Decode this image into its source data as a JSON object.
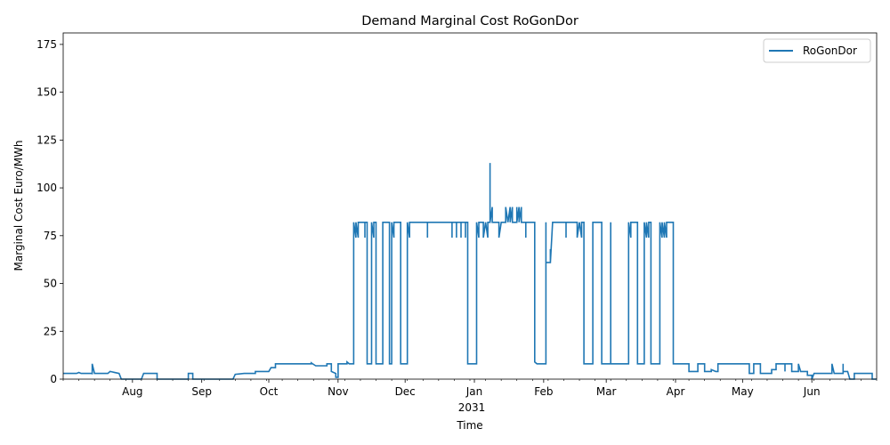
{
  "chart_data": {
    "type": "line",
    "title": "Demand Marginal Cost RoGonDor",
    "xlabel": "Time",
    "ylabel": "Marginal Cost Euro/MWh",
    "ylim": [
      0,
      181
    ],
    "xlim": [
      "2030-07-01",
      "2031-06-30"
    ],
    "yticks": [
      0,
      25,
      50,
      75,
      100,
      125,
      150,
      175
    ],
    "xticks": [
      {
        "date": "2030-08-01",
        "label": "Aug"
      },
      {
        "date": "2030-09-01",
        "label": "Sep"
      },
      {
        "date": "2030-10-01",
        "label": "Oct"
      },
      {
        "date": "2030-11-01",
        "label": "Nov"
      },
      {
        "date": "2030-12-01",
        "label": "Dec"
      },
      {
        "date": "2031-01-01",
        "label": "Jan"
      },
      {
        "date": "2031-02-01",
        "label": "Feb"
      },
      {
        "date": "2031-03-01",
        "label": "Mar"
      },
      {
        "date": "2031-04-01",
        "label": "Apr"
      },
      {
        "date": "2031-05-01",
        "label": "May"
      },
      {
        "date": "2031-06-01",
        "label": "Jun"
      }
    ],
    "year_label": "2031",
    "grid": false,
    "legend": "top-right",
    "series": [
      {
        "name": "RoGonDor",
        "color": "#1f77b4",
        "points": [
          [
            "2030-07-01",
            3
          ],
          [
            "2030-07-07",
            3
          ],
          [
            "2030-07-08",
            3.5
          ],
          [
            "2030-07-09",
            3
          ],
          [
            "2030-07-14",
            3
          ],
          [
            "2030-07-14",
            2.5
          ],
          [
            "2030-07-14",
            8
          ],
          [
            "2030-07-15",
            3
          ],
          [
            "2030-07-21",
            3
          ],
          [
            "2030-07-22",
            4
          ],
          [
            "2030-07-26",
            3
          ],
          [
            "2030-07-27",
            0
          ],
          [
            "2030-08-05",
            0
          ],
          [
            "2030-08-06",
            3
          ],
          [
            "2030-08-12",
            3
          ],
          [
            "2030-08-12",
            0
          ],
          [
            "2030-08-26",
            0
          ],
          [
            "2030-08-26",
            3
          ],
          [
            "2030-08-28",
            3
          ],
          [
            "2030-08-28",
            0
          ],
          [
            "2030-09-15",
            0
          ],
          [
            "2030-09-16",
            2.5
          ],
          [
            "2030-09-20",
            3
          ],
          [
            "2030-09-25",
            3
          ],
          [
            "2030-09-25",
            4
          ],
          [
            "2030-10-01",
            4
          ],
          [
            "2030-10-02",
            6
          ],
          [
            "2030-10-04",
            6
          ],
          [
            "2030-10-04",
            8
          ],
          [
            "2030-10-20",
            8
          ],
          [
            "2030-10-20",
            8.5
          ],
          [
            "2030-10-22",
            7
          ],
          [
            "2030-10-27",
            7
          ],
          [
            "2030-10-27",
            8
          ],
          [
            "2030-10-29",
            8
          ],
          [
            "2030-10-29",
            4
          ],
          [
            "2030-10-31",
            3
          ],
          [
            "2030-10-31",
            1
          ],
          [
            "2030-11-01",
            1
          ],
          [
            "2030-11-01",
            8
          ],
          [
            "2030-11-05",
            8
          ],
          [
            "2030-11-05",
            9
          ],
          [
            "2030-11-06",
            8
          ],
          [
            "2030-11-08",
            8
          ],
          [
            "2030-11-08",
            82
          ],
          [
            "2030-11-09",
            74
          ],
          [
            "2030-11-09",
            82
          ],
          [
            "2030-11-10",
            74
          ],
          [
            "2030-11-10",
            82
          ],
          [
            "2030-11-13",
            82
          ],
          [
            "2030-11-13",
            74
          ],
          [
            "2030-11-13",
            82
          ],
          [
            "2030-11-14",
            82
          ],
          [
            "2030-11-14",
            8
          ],
          [
            "2030-11-16",
            8
          ],
          [
            "2030-11-16",
            82
          ],
          [
            "2030-11-17",
            74
          ],
          [
            "2030-11-17",
            82
          ],
          [
            "2030-11-18",
            82
          ],
          [
            "2030-11-18",
            8
          ],
          [
            "2030-11-21",
            8
          ],
          [
            "2030-11-21",
            82
          ],
          [
            "2030-11-24",
            82
          ],
          [
            "2030-11-24",
            8
          ],
          [
            "2030-11-25",
            8
          ],
          [
            "2030-11-25",
            82
          ],
          [
            "2030-11-26",
            74
          ],
          [
            "2030-11-26",
            82
          ],
          [
            "2030-11-29",
            82
          ],
          [
            "2030-11-29",
            8
          ],
          [
            "2030-12-02",
            8
          ],
          [
            "2030-12-02",
            82
          ],
          [
            "2030-12-03",
            74
          ],
          [
            "2030-12-03",
            82
          ],
          [
            "2030-12-11",
            82
          ],
          [
            "2030-12-11",
            74
          ],
          [
            "2030-12-11",
            82
          ],
          [
            "2030-12-22",
            82
          ],
          [
            "2030-12-22",
            74
          ],
          [
            "2030-12-22",
            82
          ],
          [
            "2030-12-24",
            82
          ],
          [
            "2030-12-24",
            74
          ],
          [
            "2030-12-24",
            82
          ],
          [
            "2030-12-26",
            82
          ],
          [
            "2030-12-26",
            74
          ],
          [
            "2030-12-26",
            82
          ],
          [
            "2030-12-28",
            82
          ],
          [
            "2030-12-28",
            74
          ],
          [
            "2030-12-28",
            82
          ],
          [
            "2030-12-29",
            82
          ],
          [
            "2030-12-29",
            8
          ],
          [
            "2031-01-02",
            8
          ],
          [
            "2031-01-02",
            82
          ],
          [
            "2031-01-03",
            74
          ],
          [
            "2031-01-03",
            82
          ],
          [
            "2031-01-05",
            82
          ],
          [
            "2031-01-05",
            74
          ],
          [
            "2031-01-06",
            82
          ],
          [
            "2031-01-07",
            74
          ],
          [
            "2031-01-07",
            82
          ],
          [
            "2031-01-08",
            82
          ],
          [
            "2031-01-08",
            113
          ],
          [
            "2031-01-08",
            82
          ],
          [
            "2031-01-09",
            90
          ],
          [
            "2031-01-09",
            82
          ],
          [
            "2031-01-12",
            82
          ],
          [
            "2031-01-12",
            74
          ],
          [
            "2031-01-13",
            82
          ],
          [
            "2031-01-15",
            82
          ],
          [
            "2031-01-15",
            90
          ],
          [
            "2031-01-16",
            82
          ],
          [
            "2031-01-17",
            90
          ],
          [
            "2031-01-17",
            82
          ],
          [
            "2031-01-18",
            90
          ],
          [
            "2031-01-18",
            82
          ],
          [
            "2031-01-20",
            82
          ],
          [
            "2031-01-20",
            90
          ],
          [
            "2031-01-20",
            82
          ],
          [
            "2031-01-21",
            90
          ],
          [
            "2031-01-21",
            82
          ],
          [
            "2031-01-22",
            90
          ],
          [
            "2031-01-22",
            82
          ],
          [
            "2031-01-24",
            82
          ],
          [
            "2031-01-24",
            74
          ],
          [
            "2031-01-24",
            82
          ],
          [
            "2031-01-28",
            82
          ],
          [
            "2031-01-28",
            9
          ],
          [
            "2031-01-29",
            8
          ],
          [
            "2031-02-02",
            8
          ],
          [
            "2031-02-02",
            82
          ],
          [
            "2031-02-02",
            61
          ],
          [
            "2031-02-04",
            61
          ],
          [
            "2031-02-04",
            68
          ],
          [
            "2031-02-04",
            61
          ],
          [
            "2031-02-05",
            82
          ],
          [
            "2031-02-11",
            82
          ],
          [
            "2031-02-11",
            74
          ],
          [
            "2031-02-11",
            82
          ],
          [
            "2031-02-16",
            82
          ],
          [
            "2031-02-16",
            74
          ],
          [
            "2031-02-17",
            82
          ],
          [
            "2031-02-18",
            74
          ],
          [
            "2031-02-18",
            82
          ],
          [
            "2031-02-19",
            82
          ],
          [
            "2031-02-19",
            8
          ],
          [
            "2031-02-23",
            8
          ],
          [
            "2031-02-23",
            82
          ],
          [
            "2031-02-27",
            82
          ],
          [
            "2031-02-27",
            8
          ],
          [
            "2031-03-03",
            8
          ],
          [
            "2031-03-03",
            82
          ],
          [
            "2031-03-03",
            8
          ],
          [
            "2031-03-11",
            8
          ],
          [
            "2031-03-11",
            82
          ],
          [
            "2031-03-12",
            74
          ],
          [
            "2031-03-12",
            82
          ],
          [
            "2031-03-15",
            82
          ],
          [
            "2031-03-15",
            8
          ],
          [
            "2031-03-18",
            8
          ],
          [
            "2031-03-18",
            82
          ],
          [
            "2031-03-19",
            74
          ],
          [
            "2031-03-19",
            82
          ],
          [
            "2031-03-20",
            74
          ],
          [
            "2031-03-20",
            82
          ],
          [
            "2031-03-21",
            82
          ],
          [
            "2031-03-21",
            8
          ],
          [
            "2031-03-25",
            8
          ],
          [
            "2031-03-25",
            82
          ],
          [
            "2031-03-26",
            74
          ],
          [
            "2031-03-26",
            82
          ],
          [
            "2031-03-27",
            74
          ],
          [
            "2031-03-27",
            82
          ],
          [
            "2031-03-28",
            74
          ],
          [
            "2031-03-28",
            82
          ],
          [
            "2031-03-31",
            82
          ],
          [
            "2031-03-31",
            74
          ],
          [
            "2031-03-31",
            8
          ],
          [
            "2031-04-07",
            8
          ],
          [
            "2031-04-07",
            4
          ],
          [
            "2031-04-11",
            4
          ],
          [
            "2031-04-11",
            8
          ],
          [
            "2031-04-14",
            8
          ],
          [
            "2031-04-14",
            4
          ],
          [
            "2031-04-17",
            4
          ],
          [
            "2031-04-17",
            5
          ],
          [
            "2031-04-19",
            4
          ],
          [
            "2031-04-20",
            4
          ],
          [
            "2031-04-20",
            8
          ],
          [
            "2031-05-04",
            8
          ],
          [
            "2031-05-04",
            3
          ],
          [
            "2031-05-06",
            3
          ],
          [
            "2031-05-06",
            8
          ],
          [
            "2031-05-09",
            8
          ],
          [
            "2031-05-09",
            3
          ],
          [
            "2031-05-14",
            3
          ],
          [
            "2031-05-14",
            5
          ],
          [
            "2031-05-16",
            5
          ],
          [
            "2031-05-16",
            8
          ],
          [
            "2031-05-20",
            8
          ],
          [
            "2031-05-20",
            4
          ],
          [
            "2031-05-20",
            8
          ],
          [
            "2031-05-23",
            8
          ],
          [
            "2031-05-23",
            4
          ],
          [
            "2031-05-25",
            4
          ],
          [
            "2031-05-26",
            4
          ],
          [
            "2031-05-26",
            8
          ],
          [
            "2031-05-27",
            4
          ],
          [
            "2031-05-30",
            4
          ],
          [
            "2031-05-30",
            2
          ],
          [
            "2031-06-01",
            2
          ],
          [
            "2031-06-01",
            0
          ],
          [
            "2031-06-02",
            3
          ],
          [
            "2031-06-10",
            3
          ],
          [
            "2031-06-10",
            8
          ],
          [
            "2031-06-11",
            3
          ],
          [
            "2031-06-15",
            3
          ],
          [
            "2031-06-15",
            8
          ],
          [
            "2031-06-15",
            4
          ],
          [
            "2031-06-17",
            4
          ],
          [
            "2031-06-18",
            0
          ],
          [
            "2031-06-20",
            0
          ],
          [
            "2031-06-20",
            3
          ],
          [
            "2031-06-28",
            3
          ],
          [
            "2031-06-28",
            0
          ],
          [
            "2031-06-30",
            0
          ]
        ]
      }
    ]
  }
}
